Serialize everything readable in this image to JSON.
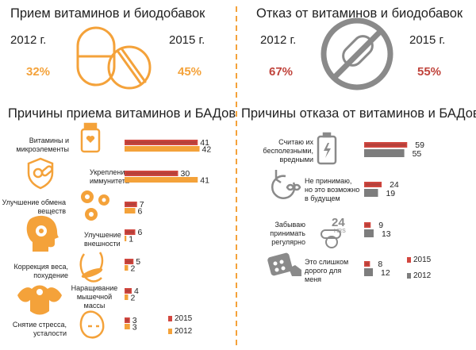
{
  "colors": {
    "orange": "#f4a23a",
    "red": "#d2473f",
    "gray": "#7d7d7d",
    "dark_red": "#b5403a"
  },
  "left": {
    "title": "Прием витаминов и биодобавок",
    "year1": "2012 г.",
    "year2": "2015 г.",
    "pct1": "32%",
    "pct2": "45%",
    "icon": "pill-icon"
  },
  "right": {
    "title": "Отказ от витаминов и биодобавок",
    "year1": "2012 г.",
    "year2": "2015 г.",
    "pct1": "67%",
    "pct2": "55%",
    "icon": "no-pill-icon"
  },
  "reasons_take": {
    "title": "Причины приема витаминов и БАДов",
    "labels": [
      "Витамины и микроэлементы",
      "Укрепление иммунитета",
      "Улучшение обмена веществ",
      "Улучшение внешности",
      "Коррекция веса, похудение",
      "Наращивание мышечной массы",
      "Снятие стресса, усталости"
    ],
    "icons": [
      "vitamin-jar-icon",
      "shield-pills-icon",
      "gears-icon",
      "head-icon",
      "scale-body-icon",
      "muscle-icon",
      "tired-face-icon"
    ],
    "legend": [
      "2015",
      "2012"
    ]
  },
  "reasons_refuse": {
    "title": "Причины отказа от витаминов и БАДов",
    "labels": [
      "Считаю их бесполезными, вредными",
      "Не принимаю, но это возможно в будущем",
      "Забываю принимать регулярно",
      "Это слишком дорого для меня"
    ],
    "icons": [
      "battery-icon",
      "clock-infinity-icon",
      "24hrs-pill-icon",
      "price-pills-icon"
    ],
    "icon_text": {
      "hours24": "24",
      "hrs": "HRS"
    },
    "legend": [
      "2015",
      "2012"
    ]
  },
  "chart_data": [
    {
      "type": "bar",
      "title": "Прием витаминов и биодобавок",
      "categories": [
        "2012 г.",
        "2015 г."
      ],
      "values": [
        32,
        45
      ]
    },
    {
      "type": "bar",
      "title": "Отказ от витаминов и биодобавок",
      "categories": [
        "2012 г.",
        "2015 г."
      ],
      "values": [
        67,
        55
      ]
    },
    {
      "type": "bar",
      "title": "Причины приема витаминов и БАДов",
      "categories": [
        "Витамины и микроэлементы",
        "Укрепление иммунитета",
        "Улучшение обмена веществ",
        "Улучшение внешности",
        "Коррекция веса, похудение",
        "Наращивание мышечной массы",
        "Снятие стресса, усталости"
      ],
      "series": [
        {
          "name": "2015",
          "values": [
            41,
            30,
            7,
            6,
            5,
            4,
            3
          ]
        },
        {
          "name": "2012",
          "values": [
            42,
            41,
            6,
            1,
            2,
            2,
            3
          ]
        }
      ],
      "legend": "bottom-right"
    },
    {
      "type": "bar",
      "title": "Причины отказа от витаминов и БАДов",
      "categories": [
        "Считаю их бесполезными, вредными",
        "Не принимаю, но это возможно в будущем",
        "Забываю принимать регулярно",
        "Это слишком дорого для меня"
      ],
      "series": [
        {
          "name": "2015",
          "values": [
            59,
            24,
            9,
            8
          ]
        },
        {
          "name": "2012",
          "values": [
            55,
            19,
            13,
            12
          ]
        }
      ],
      "legend": "bottom-right"
    }
  ]
}
